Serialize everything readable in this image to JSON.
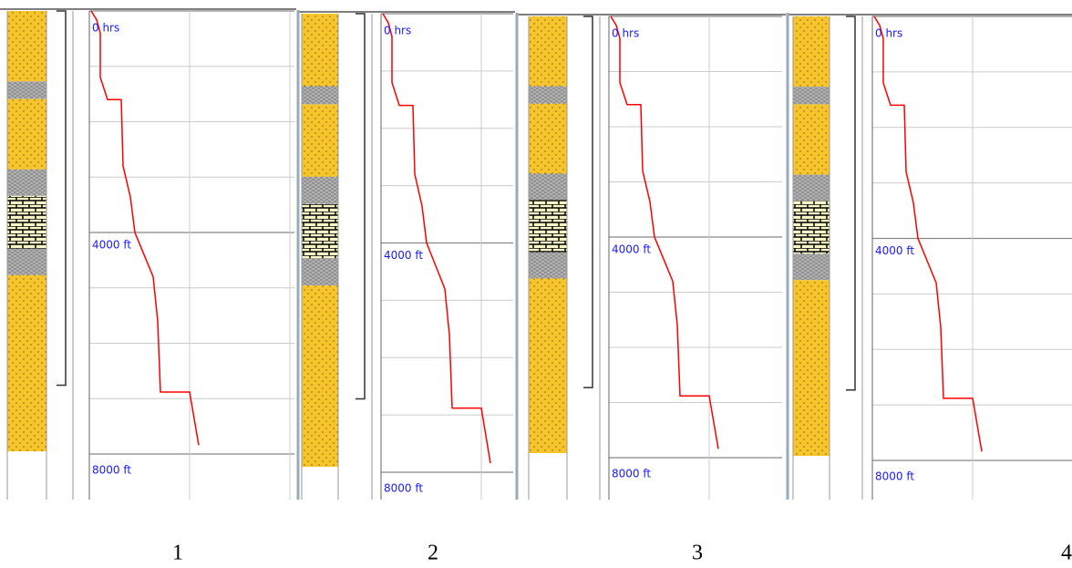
{
  "panels": [
    {
      "top_label": "0 hrs",
      "mid_label": "4000 ft",
      "bottom_label": "8000 ft",
      "caption": "1"
    },
    {
      "top_label": "0 hrs",
      "mid_label": "4000 ft",
      "bottom_label": "8000 ft",
      "caption": "2"
    },
    {
      "top_label": "0 hrs",
      "mid_label": "4000 ft",
      "bottom_label": "8000 ft",
      "caption": "3"
    },
    {
      "top_label": "0 hrs",
      "mid_label": "4000 ft",
      "bottom_label": "8000 ft",
      "caption": "4"
    }
  ]
}
